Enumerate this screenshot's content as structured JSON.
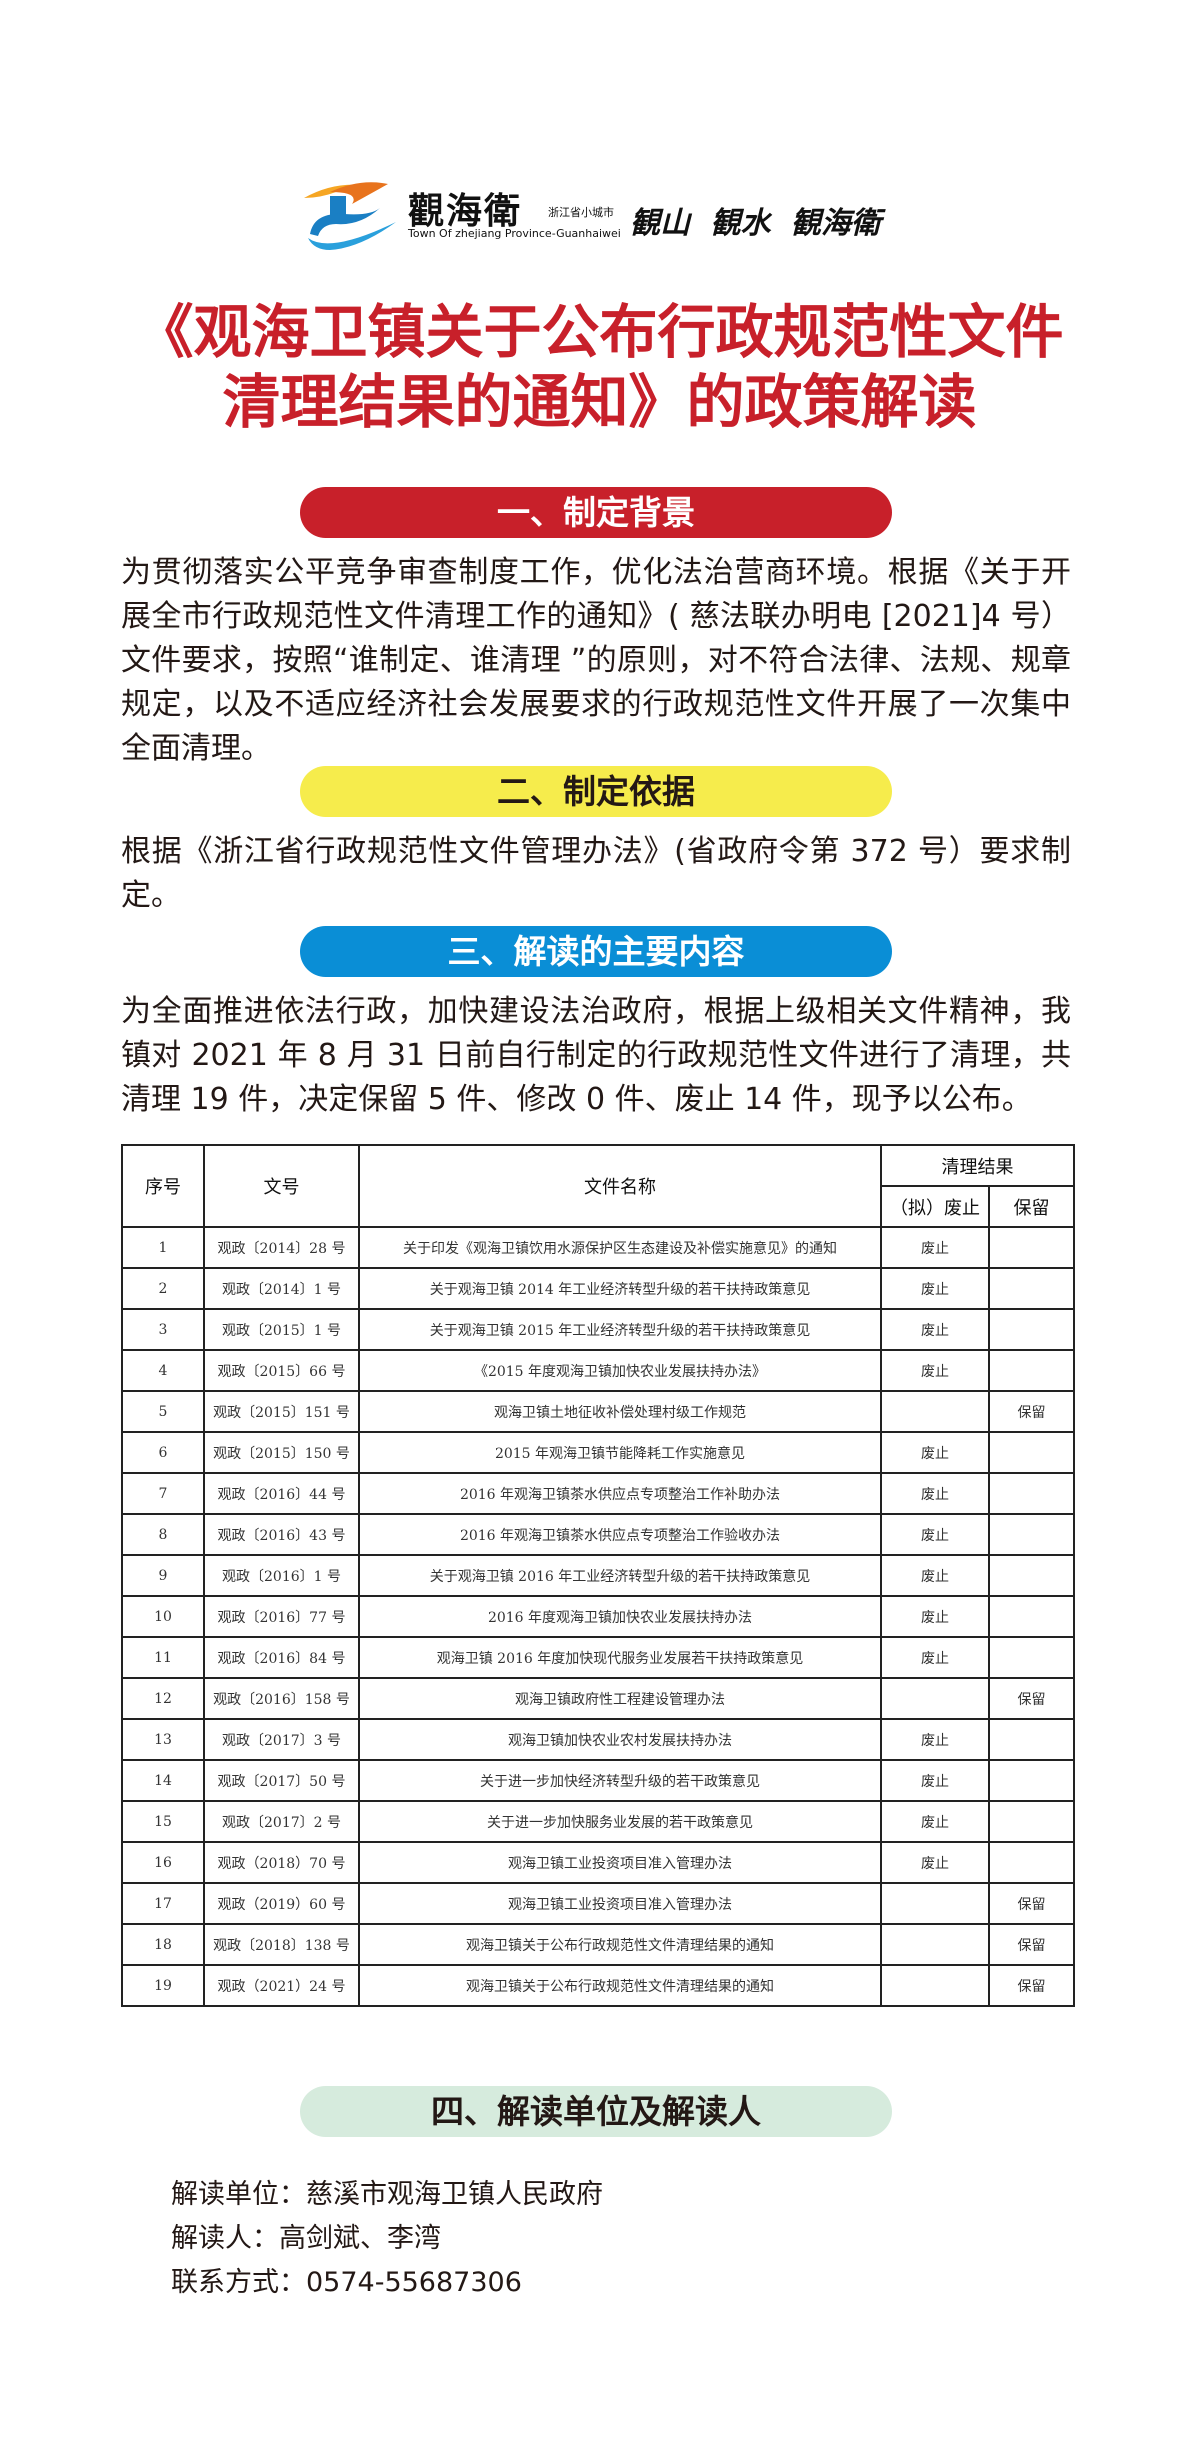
{
  "header": {
    "logo_name": "觀海衛",
    "logo_subtitle": "浙江省小城市",
    "logo_english": "Town Of zhejiang Province-Guanhaiwei",
    "slogan": "観山 観水 観海衛",
    "colors": {
      "logo_orange": "#e8731d",
      "logo_blue": "#1a7fc4"
    }
  },
  "title": {
    "line1": "《观海卫镇关于公布行政规范性文件",
    "line2": "清理结果的通知》的政策解读"
  },
  "sections": [
    {
      "heading": "一、制定背景",
      "color": "#c8202a",
      "body": "为贯彻落实公平竞争审查制度工作，优化法治营商环境。根据《关于开展全市行政规范性文件清理工作的通知》( 慈法联办明电 [2021]4 号）文件要求，按照“谁制定、谁清理 ”的原则，对不符合法律、法规、规章规定，以及不适应经济社会发展要求的行政规范性文件开展了一次集中全面清理。"
    },
    {
      "heading": "二、制定依据",
      "color": "#f6ec4c",
      "body": "根据《浙江省行政规范性文件管理办法》(省政府令第 372 号）要求制定。"
    },
    {
      "heading": "三、解读的主要内容",
      "color": "#0a8ed6",
      "body": "为全面推进依法行政，加快建设法治政府，根据上级相关文件精神，我镇对 2021 年 8 月 31 日前自行制定的行政规范性文件进行了清理，共清理 19 件，决定保留 5 件、修改 0 件、废止 14 件，现予以公布。"
    },
    {
      "heading": "四、解读单位及解读人",
      "color": "#d6ebdd"
    }
  ],
  "table": {
    "headers": {
      "no": "序号",
      "doc_no": "文号",
      "name": "文件名称",
      "result": "清理结果",
      "abolish": "（拟）废止",
      "keep": "保留"
    },
    "rows": [
      {
        "no": "1",
        "doc_no": "观政〔2014〕28 号",
        "name": "关于印发《观海卫镇饮用水源保护区生态建设及补偿实施意见》的通知",
        "abolish": "废止",
        "keep": ""
      },
      {
        "no": "2",
        "doc_no": "观政〔2014〕1 号",
        "name": "关于观海卫镇 2014 年工业经济转型升级的若干扶持政策意见",
        "abolish": "废止",
        "keep": ""
      },
      {
        "no": "3",
        "doc_no": "观政〔2015〕1 号",
        "name": "关于观海卫镇 2015 年工业经济转型升级的若干扶持政策意见",
        "abolish": "废止",
        "keep": ""
      },
      {
        "no": "4",
        "doc_no": "观政〔2015〕66 号",
        "name": "《2015 年度观海卫镇加快农业发展扶持办法》",
        "abolish": "废止",
        "keep": ""
      },
      {
        "no": "5",
        "doc_no": "观政〔2015〕151 号",
        "name": "观海卫镇土地征收补偿处理村级工作规范",
        "abolish": "",
        "keep": "保留"
      },
      {
        "no": "6",
        "doc_no": "观政〔2015〕150 号",
        "name": "2015 年观海卫镇节能降耗工作实施意见",
        "abolish": "废止",
        "keep": ""
      },
      {
        "no": "7",
        "doc_no": "观政〔2016〕44 号",
        "name": "2016 年观海卫镇茶水供应点专项整治工作补助办法",
        "abolish": "废止",
        "keep": ""
      },
      {
        "no": "8",
        "doc_no": "观政〔2016〕43 号",
        "name": "2016 年观海卫镇茶水供应点专项整治工作验收办法",
        "abolish": "废止",
        "keep": ""
      },
      {
        "no": "9",
        "doc_no": "观政〔2016〕1 号",
        "name": "关于观海卫镇 2016 年工业经济转型升级的若干扶持政策意见",
        "abolish": "废止",
        "keep": ""
      },
      {
        "no": "10",
        "doc_no": "观政〔2016〕77 号",
        "name": "2016 年度观海卫镇加快农业发展扶持办法",
        "abolish": "废止",
        "keep": ""
      },
      {
        "no": "11",
        "doc_no": "观政〔2016〕84 号",
        "name": "观海卫镇 2016 年度加快现代服务业发展若干扶持政策意见",
        "abolish": "废止",
        "keep": ""
      },
      {
        "no": "12",
        "doc_no": "观政〔2016〕158 号",
        "name": "观海卫镇政府性工程建设管理办法",
        "abolish": "",
        "keep": "保留"
      },
      {
        "no": "13",
        "doc_no": "观政〔2017〕3 号",
        "name": "观海卫镇加快农业农村发展扶持办法",
        "abolish": "废止",
        "keep": ""
      },
      {
        "no": "14",
        "doc_no": "观政〔2017〕50 号",
        "name": "关于进一步加快经济转型升级的若干政策意见",
        "abolish": "废止",
        "keep": ""
      },
      {
        "no": "15",
        "doc_no": "观政〔2017〕2 号",
        "name": "关于进一步加快服务业发展的若干政策意见",
        "abolish": "废止",
        "keep": ""
      },
      {
        "no": "16",
        "doc_no": "观政（2018）70 号",
        "name": "观海卫镇工业投资项目准入管理办法",
        "abolish": "废止",
        "keep": ""
      },
      {
        "no": "17",
        "doc_no": "观政（2019）60 号",
        "name": "观海卫镇工业投资项目准入管理办法",
        "abolish": "",
        "keep": "保留"
      },
      {
        "no": "18",
        "doc_no": "观政〔2018〕138 号",
        "name": "观海卫镇关于公布行政规范性文件清理结果的通知",
        "abolish": "",
        "keep": "保留"
      },
      {
        "no": "19",
        "doc_no": "观政（2021）24 号",
        "name": "观海卫镇关于公布行政规范性文件清理结果的通知",
        "abolish": "",
        "keep": "保留"
      }
    ]
  },
  "footer": {
    "unit": "解读单位：慈溪市观海卫镇人民政府",
    "person": "解读人：高剑斌、李湾",
    "contact": "联系方式：0574-55687306"
  }
}
